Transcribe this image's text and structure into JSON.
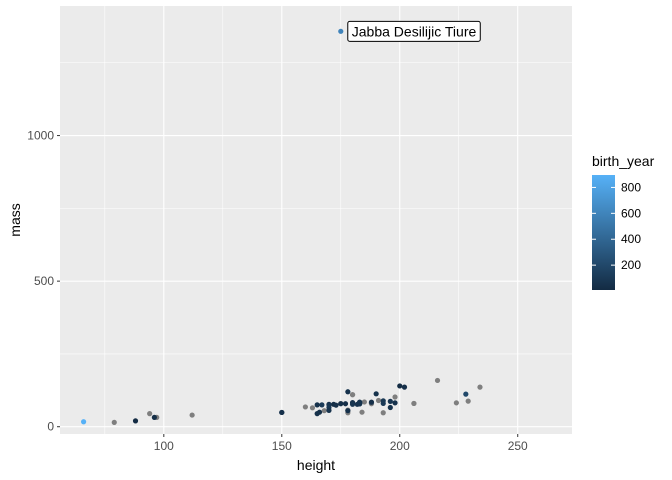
{
  "chart_data": {
    "type": "scatter",
    "xlabel": "height",
    "ylabel": "mass",
    "xlim": [
      56,
      273
    ],
    "ylim": [
      -25,
      1445
    ],
    "x_ticks": [
      100,
      150,
      200,
      250
    ],
    "y_ticks": [
      0,
      500,
      1000
    ],
    "x_tick_labels": [
      "100",
      "150",
      "200",
      "250"
    ],
    "y_tick_labels": [
      "0",
      "500",
      "1000"
    ],
    "grid": true,
    "background": "#ebebeb",
    "na_color": "#7f7f7f",
    "color_scale": {
      "title": "birth_year",
      "low": "#132b43",
      "high": "#56b1f7",
      "range": [
        8,
        896
      ],
      "breaks": [
        200,
        400,
        600,
        800
      ],
      "break_labels": [
        "200",
        "400",
        "600",
        "800"
      ],
      "legend_position": "right"
    },
    "annotation": {
      "label": "Jabba Desilijic Tiure",
      "x": 175,
      "y": 1358
    },
    "points": [
      {
        "x": 172,
        "y": 77,
        "c": 19
      },
      {
        "x": 167,
        "y": 75,
        "c": 112
      },
      {
        "x": 96,
        "y": 32,
        "c": 33
      },
      {
        "x": 202,
        "y": 136,
        "c": 41.9
      },
      {
        "x": 150,
        "y": 49,
        "c": 19
      },
      {
        "x": 178,
        "y": 120,
        "c": 52
      },
      {
        "x": 165,
        "y": 75,
        "c": 47
      },
      {
        "x": 97,
        "y": 32,
        "c": null
      },
      {
        "x": 183,
        "y": 84,
        "c": 24
      },
      {
        "x": 182,
        "y": 77,
        "c": 57
      },
      {
        "x": 188,
        "y": 84,
        "c": 41.9
      },
      {
        "x": 180,
        "y": 110,
        "c": null
      },
      {
        "x": 228,
        "y": 112,
        "c": 200
      },
      {
        "x": 180,
        "y": 80,
        "c": 29
      },
      {
        "x": 173,
        "y": 74,
        "c": 44
      },
      {
        "x": 175,
        "y": 1358,
        "c": 600
      },
      {
        "x": 170,
        "y": 77,
        "c": 21
      },
      {
        "x": 180,
        "y": 110,
        "c": null
      },
      {
        "x": 66,
        "y": 17,
        "c": 896
      },
      {
        "x": 170,
        "y": 75,
        "c": 82
      },
      {
        "x": 183,
        "y": 78.2,
        "c": 31.5
      },
      {
        "x": 200,
        "y": 140,
        "c": 15
      },
      {
        "x": 190,
        "y": 113,
        "c": 53
      },
      {
        "x": 177,
        "y": 79,
        "c": 31
      },
      {
        "x": 175,
        "y": 79,
        "c": 37
      },
      {
        "x": 180,
        "y": 83,
        "c": 41
      },
      {
        "x": 150,
        "y": 49,
        "c": 48
      },
      {
        "x": 88,
        "y": 20,
        "c": 8
      },
      {
        "x": 160,
        "y": 68,
        "c": null
      },
      {
        "x": 193,
        "y": 89,
        "c": 92
      },
      {
        "x": 191,
        "y": 90,
        "c": null
      },
      {
        "x": 170,
        "y": 66,
        "c": 91
      },
      {
        "x": 196,
        "y": 66,
        "c": 52
      },
      {
        "x": 224,
        "y": 82,
        "c": null
      },
      {
        "x": 206,
        "y": 80,
        "c": null
      },
      {
        "x": 137,
        "y": null,
        "c": null
      },
      {
        "x": 112,
        "y": 40,
        "c": null
      },
      {
        "x": 183,
        "y": 84,
        "c": 62
      },
      {
        "x": 163,
        "y": 65,
        "c": null
      },
      {
        "x": 175,
        "y": 80,
        "c": null
      },
      {
        "x": 180,
        "y": 77,
        "c": 72
      },
      {
        "x": 178,
        "y": 55,
        "c": 48
      },
      {
        "x": 94,
        "y": 45,
        "c": null
      },
      {
        "x": 122,
        "y": null,
        "c": null
      },
      {
        "x": 163,
        "y": null,
        "c": null
      },
      {
        "x": 188,
        "y": 84,
        "c": null
      },
      {
        "x": 198,
        "y": 82,
        "c": 54
      },
      {
        "x": 196,
        "y": 87,
        "c": 72
      },
      {
        "x": 171,
        "y": null,
        "c": 92
      },
      {
        "x": 184,
        "y": 50,
        "c": null
      },
      {
        "x": 188,
        "y": null,
        "c": 22
      },
      {
        "x": 264,
        "y": null,
        "c": null
      },
      {
        "x": 188,
        "y": 80,
        "c": null
      },
      {
        "x": 196,
        "y": null,
        "c": null
      },
      {
        "x": 185,
        "y": 85,
        "c": null
      },
      {
        "x": 157,
        "y": null,
        "c": null
      },
      {
        "x": 183,
        "y": null,
        "c": null
      },
      {
        "x": 183,
        "y": null,
        "c": null
      },
      {
        "x": 170,
        "y": 56.2,
        "c": 58
      },
      {
        "x": 166,
        "y": 50,
        "c": 40
      },
      {
        "x": 165,
        "y": 45,
        "c": 46
      },
      {
        "x": 193,
        "y": 80,
        "c": 102
      },
      {
        "x": 191,
        "y": null,
        "c": null
      },
      {
        "x": 183,
        "y": 79,
        "c": 67
      },
      {
        "x": 168,
        "y": 55,
        "c": null
      },
      {
        "x": 198,
        "y": 102,
        "c": null
      },
      {
        "x": 229,
        "y": 88,
        "c": null
      },
      {
        "x": 213,
        "y": null,
        "c": null
      },
      {
        "x": 167,
        "y": null,
        "c": null
      },
      {
        "x": 79,
        "y": 15,
        "c": null
      },
      {
        "x": 96,
        "y": null,
        "c": null
      },
      {
        "x": 193,
        "y": 48,
        "c": null
      },
      {
        "x": 191,
        "y": null,
        "c": null
      },
      {
        "x": 178,
        "y": 57,
        "c": null
      },
      {
        "x": 216,
        "y": 159,
        "c": null
      },
      {
        "x": 234,
        "y": 136,
        "c": null
      },
      {
        "x": 188,
        "y": 79,
        "c": null
      },
      {
        "x": 178,
        "y": 48,
        "c": null
      },
      {
        "x": 206,
        "y": 80,
        "c": null
      },
      {
        "x": 180,
        "y": null,
        "c": null
      }
    ]
  }
}
